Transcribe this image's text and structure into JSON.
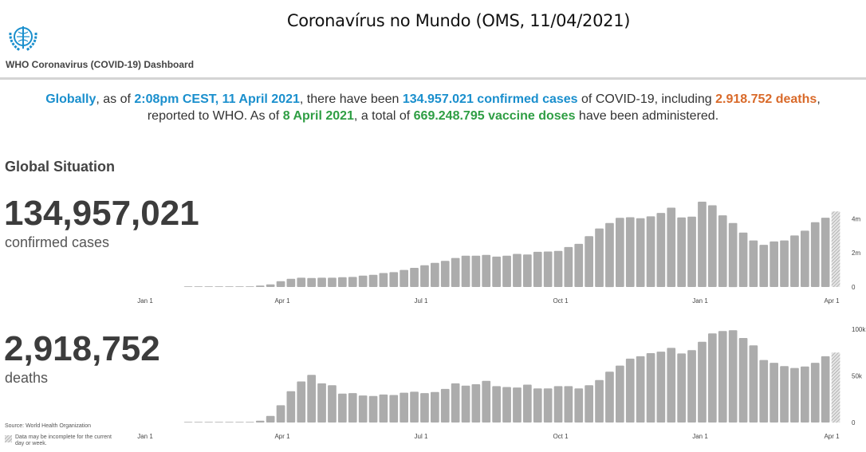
{
  "page_title": "Coronavírus no Mundo (OMS, 11/04/2021)",
  "header": {
    "dashboard_title": "WHO Coronavirus (COVID-19) Dashboard",
    "logo_icon": "who-emblem-icon"
  },
  "summary": {
    "globally": "Globally",
    "t1": ", as of ",
    "time": "2:08pm CEST, 11 April 2021",
    "t2": ", there have been ",
    "cases": "134.957.021 confirmed cases",
    "t3": " of COVID-19, including ",
    "deaths": "2.918.752 deaths",
    "t4": ",",
    "t5": "reported to WHO. As of ",
    "vacc_date": "8 April 2021",
    "t6": ", a total of ",
    "vaccines": "669.248.795 vaccine doses",
    "t7": " have been administered.",
    "colors": {
      "blue": "#1a8fcd",
      "orange": "#d96a2a",
      "green": "#2f9e44"
    }
  },
  "section_title": "Global Situation",
  "cases": {
    "value": "134,957,021",
    "label": "confirmed cases"
  },
  "deaths": {
    "value": "2,918,752",
    "label": "deaths"
  },
  "source": "Source: World Health Organization",
  "note": "Data may be incomplete for the current day or week.",
  "chart_data": [
    {
      "type": "bar",
      "title": "",
      "x_tick_labels": [
        "Jan 1",
        "Apr 1",
        "Jul 1",
        "Oct 1",
        "Jan 1",
        "Apr 1"
      ],
      "y_tick_labels": [
        "0",
        "2m",
        "4m"
      ],
      "ylim": [
        0,
        5000000
      ],
      "bar_color": "#acacac",
      "last_bar_incomplete": true,
      "values": [
        5000,
        8000,
        10000,
        12000,
        15000,
        18000,
        30000,
        80000,
        150000,
        340000,
        480000,
        540000,
        530000,
        540000,
        540000,
        570000,
        590000,
        670000,
        710000,
        820000,
        870000,
        1000000,
        1120000,
        1270000,
        1410000,
        1530000,
        1700000,
        1830000,
        1830000,
        1880000,
        1780000,
        1830000,
        1940000,
        1900000,
        2060000,
        2080000,
        2110000,
        2340000,
        2530000,
        2980000,
        3430000,
        3750000,
        4050000,
        4090000,
        4030000,
        4140000,
        4340000,
        4650000,
        4080000,
        4120000,
        5000000,
        4790000,
        4200000,
        3750000,
        3190000,
        2730000,
        2470000,
        2670000,
        2730000,
        3020000,
        3300000,
        3800000,
        4060000,
        4430000
      ]
    },
    {
      "type": "bar",
      "title": "",
      "x_tick_labels": [
        "Jan 1",
        "Apr 1",
        "Jul 1",
        "Oct 1",
        "Jan 1",
        "Apr 1"
      ],
      "y_tick_labels": [
        "0",
        "50k",
        "100k"
      ],
      "ylim": [
        0,
        100000
      ],
      "bar_color": "#acacac",
      "last_bar_incomplete": true,
      "values": [
        200,
        200,
        200,
        200,
        200,
        200,
        200,
        2000,
        7000,
        18500,
        33500,
        44000,
        51000,
        42000,
        40000,
        31000,
        31500,
        29000,
        28400,
        30000,
        29500,
        32000,
        33000,
        31500,
        32700,
        36000,
        42000,
        39500,
        41000,
        44600,
        39000,
        38000,
        37500,
        40600,
        36600,
        36600,
        39000,
        39000,
        36600,
        40000,
        45500,
        54500,
        61000,
        68500,
        71000,
        74400,
        76000,
        80000,
        74000,
        77500,
        86600,
        95500,
        98000,
        99000,
        90600,
        82700,
        67000,
        64000,
        60500,
        58500,
        60000,
        64000,
        71000,
        75000
      ]
    }
  ]
}
